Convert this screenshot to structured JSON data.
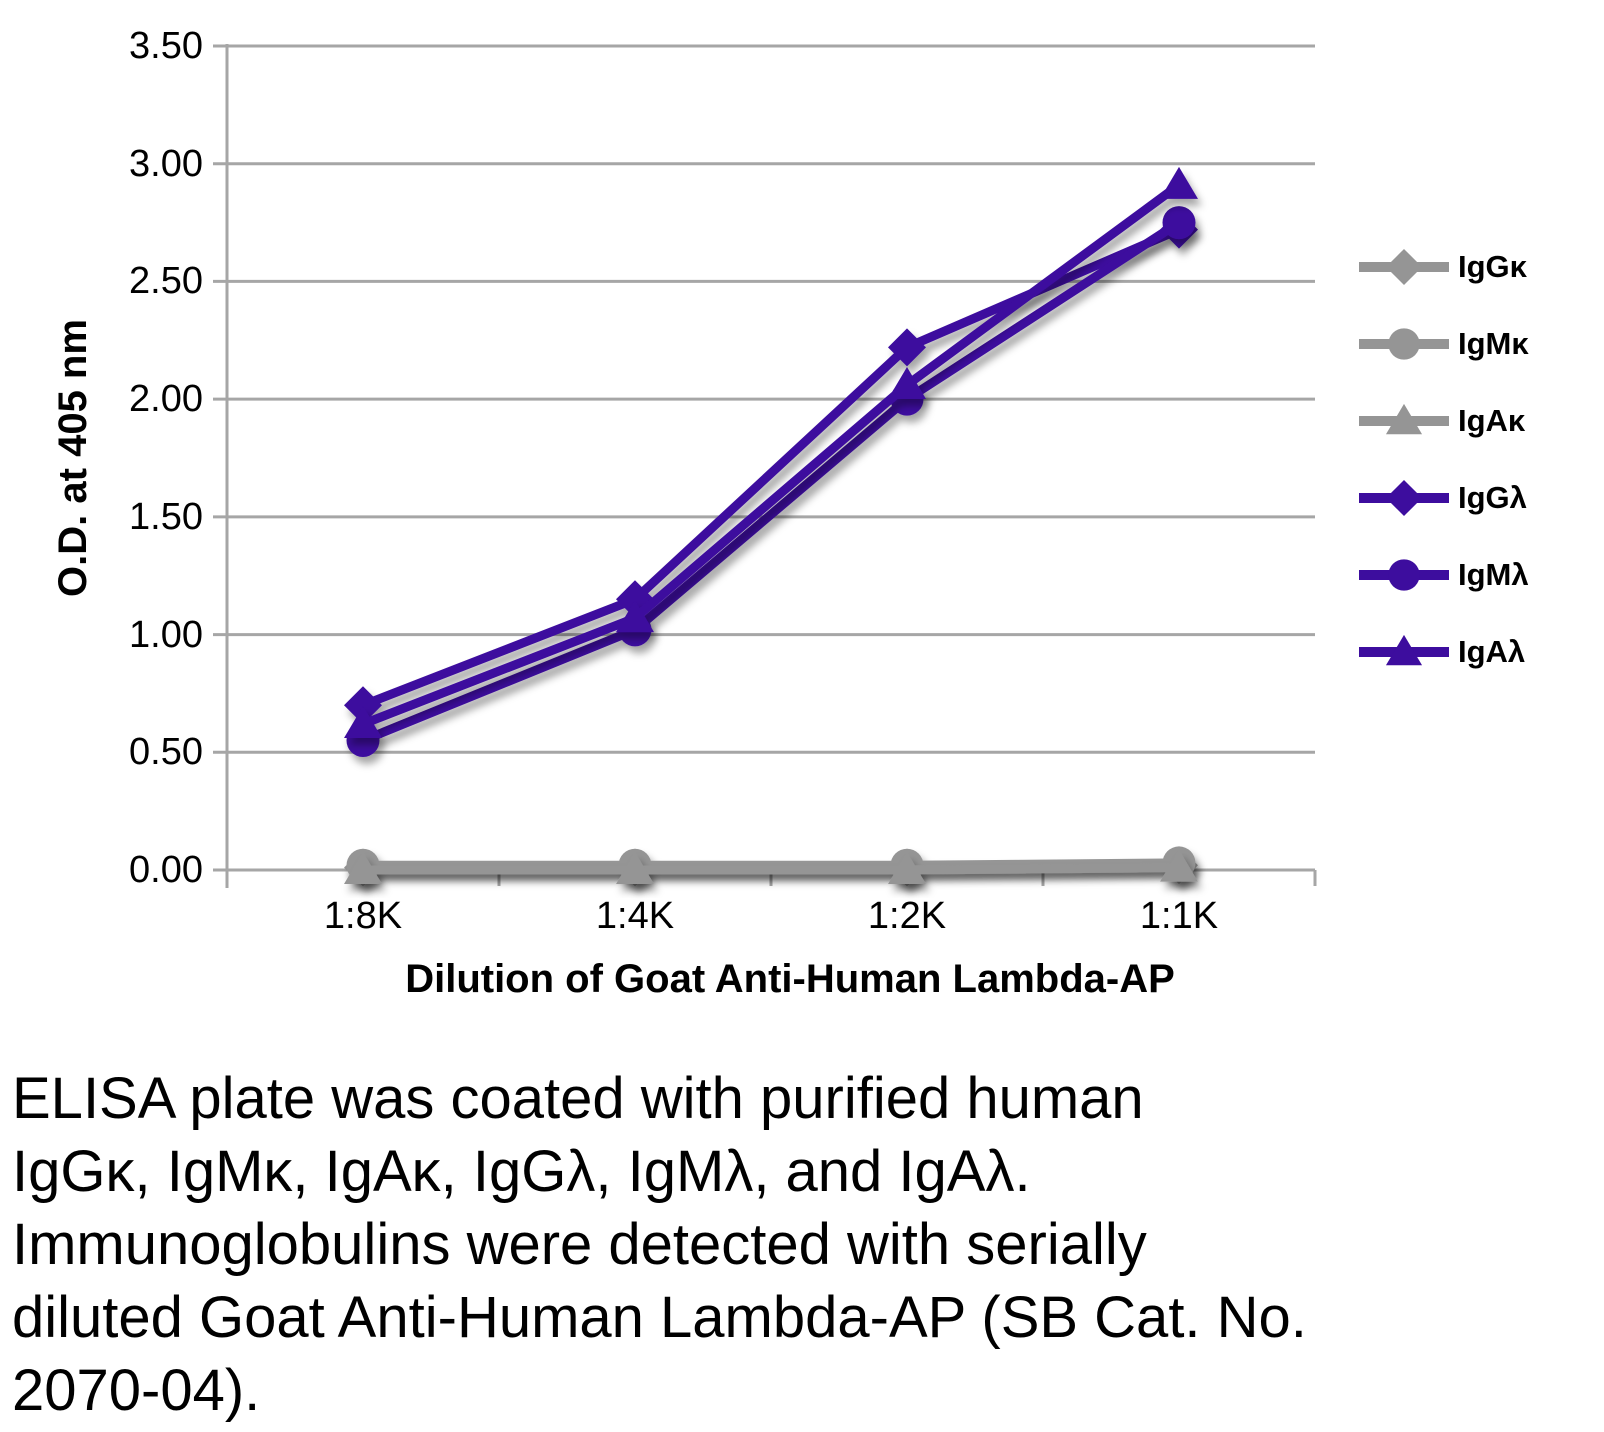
{
  "colors": {
    "background": "#ffffff",
    "gridline": "#a6a6a6",
    "axis_text": "#000000",
    "kappa_gray": "#959595",
    "lambda_purple": "#3d0d9e"
  },
  "chart_data": {
    "type": "line",
    "title": "",
    "xlabel": "Dilution of Goat Anti-Human Lambda-AP",
    "ylabel": "O.D. at 405 nm",
    "categories": [
      "1:8K",
      "1:4K",
      "1:2K",
      "1:1K"
    ],
    "ylim": [
      0.0,
      3.5
    ],
    "y_tick_step": 0.5,
    "y_tick_labels": [
      "0.00",
      "0.50",
      "1.00",
      "1.50",
      "2.00",
      "2.50",
      "3.00",
      "3.50"
    ],
    "grid": true,
    "legend_position": "right",
    "series": [
      {
        "name": "IgGκ",
        "marker": "diamond",
        "color": "#959595",
        "values": [
          0.01,
          0.01,
          0.01,
          0.02
        ]
      },
      {
        "name": "IgMκ",
        "marker": "circle",
        "color": "#959595",
        "values": [
          0.02,
          0.02,
          0.02,
          0.03
        ]
      },
      {
        "name": "IgAκ",
        "marker": "triangle",
        "color": "#959595",
        "values": [
          0.0,
          0.0,
          0.0,
          0.01
        ]
      },
      {
        "name": "IgGλ",
        "marker": "diamond",
        "color": "#3d0d9e",
        "values": [
          0.7,
          1.15,
          2.22,
          2.72
        ]
      },
      {
        "name": "IgMλ",
        "marker": "circle",
        "color": "#3d0d9e",
        "values": [
          0.55,
          1.02,
          2.0,
          2.75
        ]
      },
      {
        "name": "IgAλ",
        "marker": "triangle",
        "color": "#3d0d9e",
        "values": [
          0.62,
          1.07,
          2.06,
          2.91
        ]
      }
    ]
  },
  "caption": {
    "lines": [
      "ELISA plate was coated with purified human",
      "IgGκ, IgMκ, IgAκ, IgGλ, IgMλ, and IgAλ.",
      "Immunoglobulins were detected with serially",
      "diluted Goat Anti-Human Lambda-AP (SB Cat. No.",
      "2070-04)."
    ]
  }
}
